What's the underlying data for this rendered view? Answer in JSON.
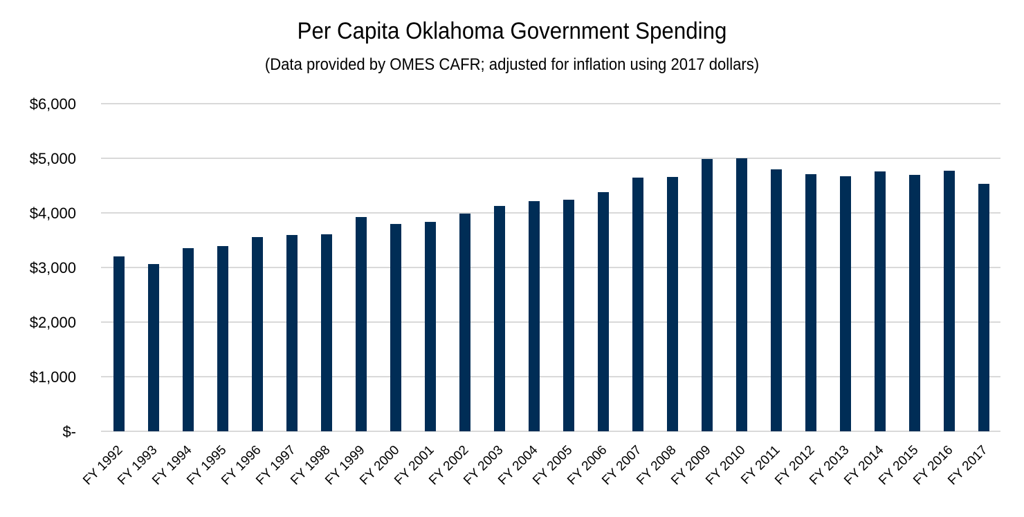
{
  "chart_data": {
    "type": "bar",
    "title": "Per Capita Oklahoma Government Spending",
    "subtitle": "(Data provided by OMES CAFR; adjusted for inflation using 2017 dollars)",
    "xlabel": "",
    "ylabel": "",
    "ylim": [
      0,
      6000
    ],
    "yticks": [
      0,
      1000,
      2000,
      3000,
      4000,
      5000,
      6000
    ],
    "ytick_labels": [
      "$-",
      "$1,000",
      "$2,000",
      "$3,000",
      "$4,000",
      "$5,000",
      "$6,000"
    ],
    "grid": true,
    "legend": "none",
    "bar_color": "#002D56",
    "grid_color": "#D9D9D9",
    "categories": [
      "FY 1992",
      "FY 1993",
      "FY 1994",
      "FY 1995",
      "FY 1996",
      "FY 1997",
      "FY 1998",
      "FY 1999",
      "FY 2000",
      "FY 2001",
      "FY 2002",
      "FY 2003",
      "FY 2004",
      "FY 2005",
      "FY 2006",
      "FY 2007",
      "FY 2008",
      "FY 2009",
      "FY 2010",
      "FY 2011",
      "FY 2012",
      "FY 2013",
      "FY 2014",
      "FY 2015",
      "FY 2016",
      "FY 2017"
    ],
    "values": [
      3203,
      3063,
      3354,
      3392,
      3557,
      3595,
      3608,
      3924,
      3797,
      3835,
      3987,
      4127,
      4215,
      4241,
      4380,
      4646,
      4658,
      4987,
      5000,
      4797,
      4709,
      4671,
      4759,
      4696,
      4772,
      4532
    ]
  }
}
